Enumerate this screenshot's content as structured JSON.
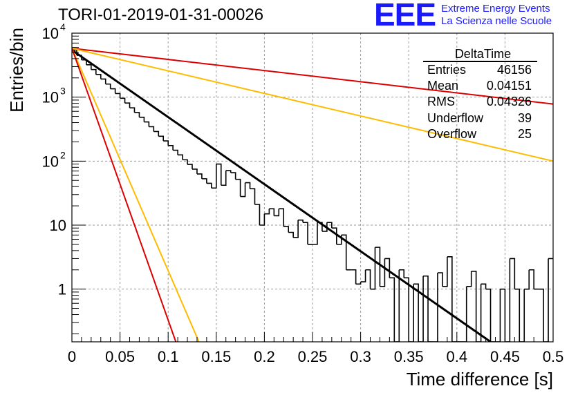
{
  "header": {
    "run_title": "TORI-01-2019-01-31-00026",
    "logo_text": "EEE",
    "logo_line1": "Extreme Energy Events",
    "logo_line2": "La Scienza nelle Scuole"
  },
  "stats": {
    "title": "DeltaTime",
    "rows": [
      {
        "label": "Entries",
        "value": "46156"
      },
      {
        "label": "Mean",
        "value": "0.04151"
      },
      {
        "label": "RMS",
        "value": "0.04326"
      },
      {
        "label": "Underflow",
        "value": "39"
      },
      {
        "label": "Overflow",
        "value": "25"
      }
    ]
  },
  "colors": {
    "histogram": "#000000",
    "fit": "#000000",
    "red_line": "#dd0000",
    "orange_line": "#ffbb00",
    "grid": "#999999"
  },
  "chart_data": {
    "type": "line",
    "title": "TORI-01-2019-01-31-00026",
    "xlabel": "Time difference [s]",
    "ylabel": "Entries/bin",
    "xlim": [
      0,
      0.5
    ],
    "ylim": [
      0.15,
      10000
    ],
    "yscale": "log",
    "grid": true,
    "x_ticks": [
      "0",
      "0.05",
      "0.1",
      "0.15",
      "0.2",
      "0.25",
      "0.3",
      "0.35",
      "0.4",
      "0.45",
      "0.5"
    ],
    "y_ticks": [
      {
        "value": 1,
        "label": "1"
      },
      {
        "value": 10,
        "label": "10"
      },
      {
        "value": 100,
        "label": "10",
        "exp": "2"
      },
      {
        "value": 1000,
        "label": "10",
        "exp": "3"
      },
      {
        "value": 10000,
        "label": "10",
        "exp": "4"
      }
    ],
    "histogram": {
      "name": "DeltaTime",
      "bin_width": 0.005,
      "counts": [
        5450,
        4500,
        3820,
        3200,
        2700,
        2260,
        1920,
        1600,
        1350,
        1140,
        960,
        810,
        680,
        575,
        485,
        410,
        345,
        290,
        245,
        207,
        175,
        148,
        125,
        105,
        89,
        75,
        63,
        53,
        45,
        38,
        90,
        42,
        71,
        66,
        52,
        28,
        46,
        37,
        21,
        10,
        15,
        18,
        14,
        18,
        9.5,
        7.7,
        6.4,
        12,
        11,
        5,
        5,
        11,
        8,
        11,
        9,
        5,
        7,
        2,
        2,
        1.2,
        1.3,
        2,
        1,
        4.5,
        1.1,
        3,
        1.5,
        0.1,
        2,
        1.5,
        0.1,
        1.2,
        0.1,
        1.6,
        0.1,
        0.1,
        1.8,
        1.1,
        3.2,
        0.1,
        0.1,
        0.1,
        1.1,
        1.9,
        0.1,
        1.2,
        1,
        0.1,
        0.1,
        1,
        0.1,
        3,
        1,
        0.1,
        1,
        2,
        1,
        1,
        0.1,
        3
      ]
    },
    "series": [
      {
        "kind": "fit",
        "start_value": 5450,
        "end_x": 0.435,
        "end_value": 0.15
      },
      {
        "kind": "red",
        "start_value": 5800,
        "end_x": 0.5,
        "end_value": 780
      },
      {
        "kind": "orange",
        "start_value": 5800,
        "end_x": 0.5,
        "end_value": 100
      },
      {
        "kind": "orange",
        "start_value": 5800,
        "end_x": 0.132,
        "end_value": 0.15
      },
      {
        "kind": "red",
        "start_value": 5800,
        "end_x": 0.108,
        "end_value": 0.15
      }
    ]
  }
}
